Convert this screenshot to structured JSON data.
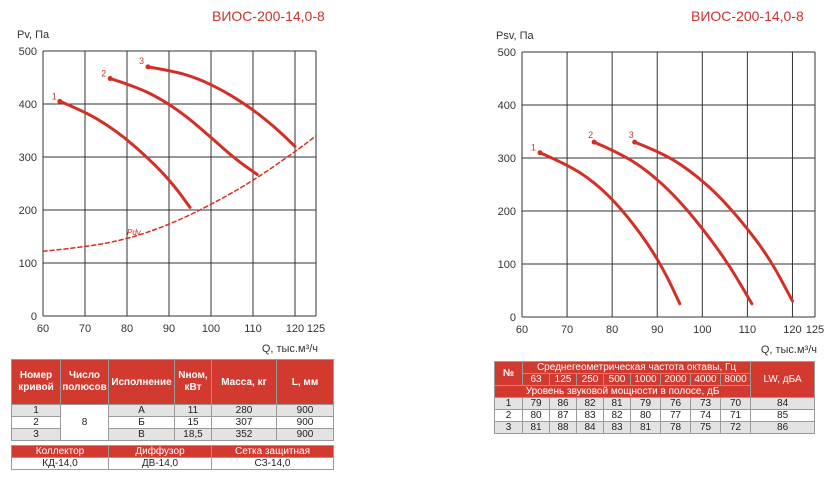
{
  "charts": {
    "left": {
      "title": "ВИОС-200-14,0-8",
      "ylabel": "Pv, Па",
      "xlabel": "Q, тыс.м³/ч"
    },
    "right": {
      "title": "ВИОС-200-14,0-8",
      "ylabel": "Psv, Па",
      "xlabel": "Q, тыс.м³/ч"
    }
  },
  "chart_data": [
    {
      "type": "line",
      "title": "ВИОС-200-14,0-8",
      "xlabel": "Q, тыс.м³/ч",
      "ylabel": "Pv, Па",
      "xlim": [
        60,
        125
      ],
      "ylim": [
        0,
        500
      ],
      "xticks": [
        60,
        70,
        80,
        90,
        100,
        110,
        120,
        125
      ],
      "yticks": [
        0,
        100,
        200,
        300,
        400,
        500
      ],
      "grid": true,
      "series": [
        {
          "name": "1",
          "x": [
            64,
            70,
            76,
            82,
            88,
            92,
            95
          ],
          "y": [
            405,
            385,
            357,
            320,
            275,
            238,
            205
          ],
          "color": "#d42f26"
        },
        {
          "name": "2",
          "x": [
            76,
            82,
            88,
            94,
            100,
            106,
            111
          ],
          "y": [
            448,
            433,
            410,
            378,
            337,
            295,
            267
          ],
          "color": "#d42f26"
        },
        {
          "name": "3",
          "x": [
            85,
            91,
            97,
            103,
            109,
            115,
            120
          ],
          "y": [
            470,
            462,
            448,
            425,
            395,
            358,
            320
          ],
          "color": "#d42f26"
        },
        {
          "name": "Pdv",
          "x": [
            60,
            70,
            80,
            90,
            100,
            110,
            120,
            125
          ],
          "y": [
            122,
            130,
            145,
            172,
            210,
            255,
            310,
            340
          ],
          "color": "#d42f26",
          "dashed": true
        }
      ]
    },
    {
      "type": "line",
      "title": "ВИОС-200-14,0-8",
      "xlabel": "Q, тыс.м³/ч",
      "ylabel": "Psv, Па",
      "xlim": [
        60,
        125
      ],
      "ylim": [
        0,
        500
      ],
      "xticks": [
        60,
        70,
        80,
        90,
        100,
        110,
        120,
        125
      ],
      "yticks": [
        0,
        100,
        200,
        300,
        400,
        500
      ],
      "grid": true,
      "series": [
        {
          "name": "1",
          "x": [
            64,
            70,
            76,
            82,
            88,
            92,
            95
          ],
          "y": [
            310,
            288,
            255,
            205,
            138,
            80,
            25
          ],
          "color": "#d42f26"
        },
        {
          "name": "2",
          "x": [
            76,
            82,
            88,
            94,
            100,
            106,
            111
          ],
          "y": [
            330,
            308,
            275,
            228,
            168,
            98,
            25
          ],
          "color": "#d42f26"
        },
        {
          "name": "3",
          "x": [
            85,
            91,
            97,
            103,
            109,
            115,
            120
          ],
          "y": [
            330,
            310,
            278,
            235,
            178,
            110,
            30
          ],
          "color": "#d42f26"
        }
      ]
    }
  ],
  "spec_table": {
    "headers": [
      "Номер кривой",
      "Число полюсов",
      "Исполнение",
      "Nном, кВт",
      "Масса, кг",
      "L, мм"
    ],
    "poles": "8",
    "rows": [
      {
        "num": "1",
        "variant": "А",
        "power": "11",
        "mass": "280",
        "length": "900"
      },
      {
        "num": "2",
        "variant": "Б",
        "power": "15",
        "mass": "307",
        "length": "900"
      },
      {
        "num": "3",
        "variant": "В",
        "power": "18,5",
        "mass": "352",
        "length": "900"
      }
    ],
    "accessories_headers": [
      "Коллектор",
      "Диффузор",
      "Сетка защитная"
    ],
    "accessories_values": [
      "КД-14,0",
      "ДВ-14,0",
      "СЗ-14,0"
    ]
  },
  "sound_table": {
    "num_header": "№",
    "freq_header": "Среднегеометрическая частота октавы, Гц",
    "freqs": [
      "63",
      "125",
      "250",
      "500",
      "1000",
      "2000",
      "4000",
      "8000"
    ],
    "lw_header": "LW, дБА",
    "level_header": "Уровень звуковой мощности в полосе, дБ",
    "rows": [
      {
        "num": "1",
        "values": [
          "79",
          "86",
          "82",
          "81",
          "79",
          "76",
          "73",
          "70"
        ],
        "lw": "84"
      },
      {
        "num": "2",
        "values": [
          "80",
          "87",
          "83",
          "82",
          "80",
          "77",
          "74",
          "71"
        ],
        "lw": "85"
      },
      {
        "num": "3",
        "values": [
          "81",
          "88",
          "84",
          "83",
          "81",
          "78",
          "75",
          "72"
        ],
        "lw": "86"
      }
    ]
  }
}
